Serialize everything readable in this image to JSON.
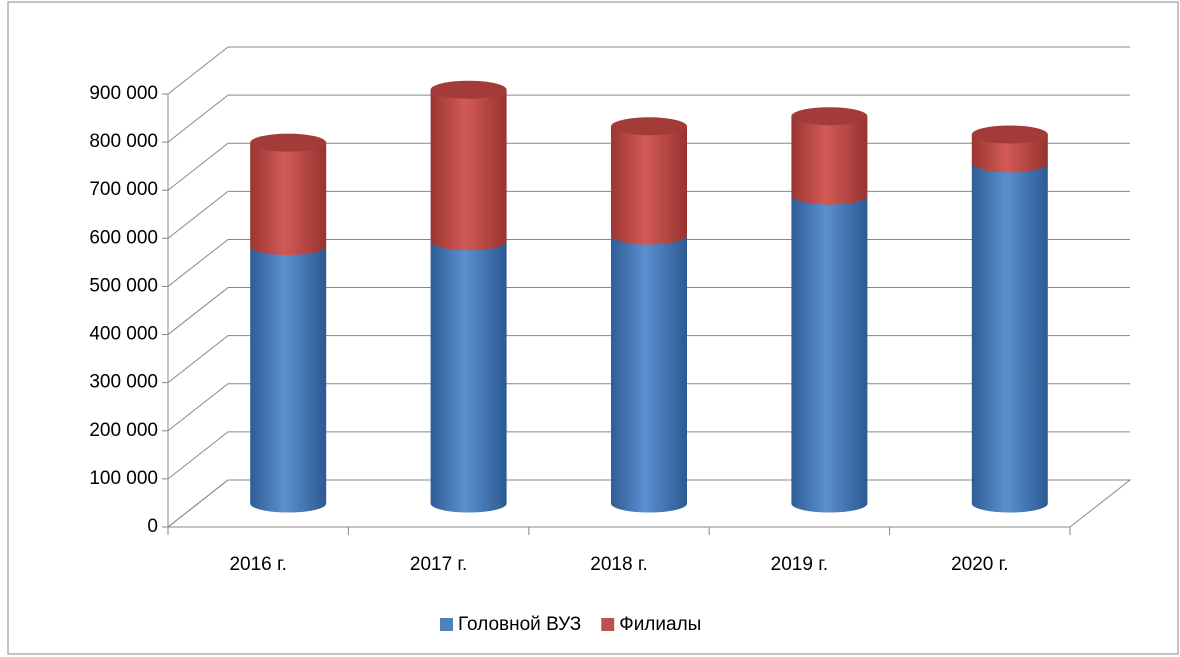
{
  "chart_data": {
    "type": "bar3d_stacked",
    "categories": [
      "2016 г.",
      "2017 г.",
      "2018 г.",
      "2019 г.",
      "2020 г."
    ],
    "series": [
      {
        "name": "Головной ВУЗ",
        "color": "#4f81bd",
        "values": [
          535000,
          545000,
          557000,
          640000,
          707000
        ]
      },
      {
        "name": "Филиалы",
        "color": "#c0504d",
        "values": [
          215000,
          315000,
          227000,
          165000,
          60000
        ]
      }
    ],
    "ylim": [
      0,
      900000
    ],
    "yticks": [
      0,
      {
        "value": 100000,
        "label": "100 000"
      },
      {
        "value": 200000,
        "label": "200 000"
      },
      {
        "value": 300000,
        "label": "300 000"
      },
      {
        "value": 400000,
        "label": "400 000"
      },
      {
        "value": 500000,
        "label": "500 000"
      },
      {
        "value": 600000,
        "label": "600 000"
      },
      {
        "value": 700000,
        "label": "700 000"
      },
      {
        "value": 800000,
        "label": "800 000"
      },
      {
        "value": 900000,
        "label": "900 000"
      }
    ],
    "grid": true,
    "legend": "bottom"
  }
}
